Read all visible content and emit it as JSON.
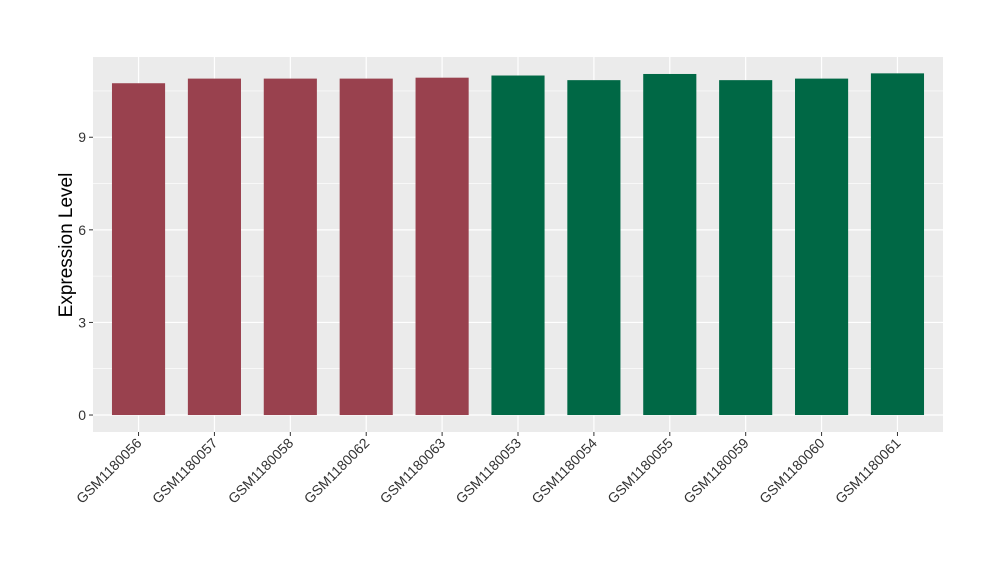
{
  "chart_data": {
    "type": "bar",
    "title": "",
    "xlabel": "",
    "ylabel": "Expression Level",
    "categories": [
      "GSM1180056",
      "GSM1180057",
      "GSM1180058",
      "GSM1180062",
      "GSM1180063",
      "GSM1180053",
      "GSM1180054",
      "GSM1180055",
      "GSM1180059",
      "GSM1180060",
      "GSM1180061"
    ],
    "values": [
      10.75,
      10.9,
      10.9,
      10.9,
      10.93,
      11.0,
      10.85,
      11.05,
      10.85,
      10.9,
      11.07
    ],
    "bar_colors": [
      "#99414E",
      "#99414E",
      "#99414E",
      "#99414E",
      "#99414E",
      "#006845",
      "#006845",
      "#006845",
      "#006845",
      "#006845",
      "#006845"
    ],
    "yticks": [
      0,
      3,
      6,
      9
    ],
    "ylim": [
      -0.55,
      11.6
    ],
    "grid": true,
    "panel_background": "#EBEBEB",
    "legend": "none"
  }
}
